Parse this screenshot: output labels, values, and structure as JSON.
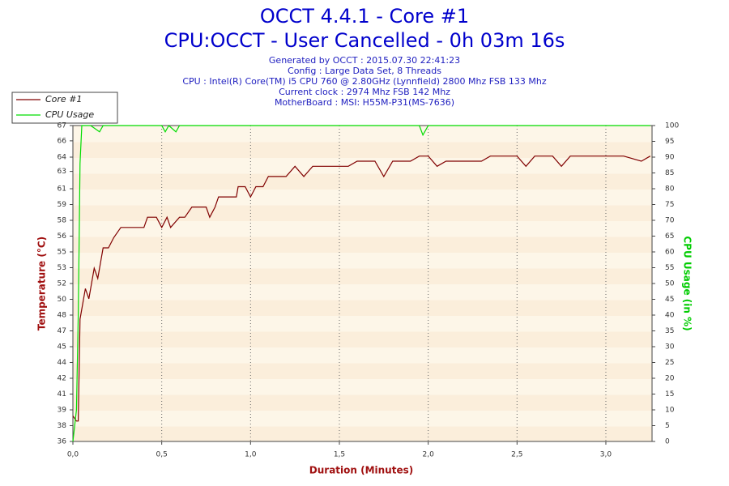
{
  "chart_data": {
    "type": "line",
    "title": "OCCT 4.4.1 - Core #1",
    "subtitle": "CPU:OCCT - User Cancelled - 0h 03m 16s",
    "info": [
      "Generated by OCCT : 2015.07.30 22:41:23",
      "Config : Large Data Set, 8 Threads",
      "CPU : Intel(R) Core(TM) i5 CPU 760 @ 2.80GHz (Lynnfield) 2800 Mhz FSB 133 Mhz",
      "Current clock : 2974 Mhz FSB 142 Mhz",
      "MotherBoard : MSI: H55M-P31(MS-7636)"
    ],
    "x_label": "Duration (Minutes)",
    "y_label": "Temperature (°C)",
    "y2_label": "CPU Usage (in %)",
    "xlim": [
      0,
      3.26
    ],
    "ylim": [
      36,
      67
    ],
    "y2lim": [
      0,
      100
    ],
    "xticks": [
      {
        "value": 0,
        "label": "0,0"
      },
      {
        "value": 0.5,
        "label": "0,5"
      },
      {
        "value": 1,
        "label": "1,0"
      },
      {
        "value": 1.5,
        "label": "1,5"
      },
      {
        "value": 2,
        "label": "2,0"
      },
      {
        "value": 2.5,
        "label": "2,5"
      },
      {
        "value": 3,
        "label": "3,0"
      }
    ],
    "yticks": [
      36,
      {
        "value": 37.55,
        "label": "38"
      },
      {
        "value": 39.1,
        "label": "39"
      },
      {
        "value": 40.65,
        "label": "41"
      },
      {
        "value": 42.2,
        "label": "42"
      },
      {
        "value": 43.75,
        "label": "44"
      },
      {
        "value": 45.3,
        "label": "45"
      },
      {
        "value": 46.85,
        "label": "47"
      },
      {
        "value": 48.4,
        "label": "48"
      },
      {
        "value": 49.95,
        "label": "50"
      },
      {
        "value": 51.5,
        "label": "52"
      },
      {
        "value": 53.05,
        "label": "53"
      },
      {
        "value": 54.6,
        "label": "55"
      },
      {
        "value": 56.15,
        "label": "56"
      },
      {
        "value": 57.7,
        "label": "58"
      },
      {
        "value": 59.25,
        "label": "59"
      },
      {
        "value": 60.8,
        "label": "61"
      },
      {
        "value": 62.5,
        "label": "63"
      },
      {
        "value": 63.9,
        "label": "64"
      },
      {
        "value": 65.5,
        "label": "66"
      },
      67
    ],
    "y2ticks": [
      0,
      5,
      10,
      15,
      20,
      25,
      30,
      35,
      40,
      45,
      50,
      55,
      60,
      65,
      70,
      75,
      80,
      85,
      90,
      95,
      100
    ],
    "grid": true,
    "legend": "top-left",
    "series": [
      {
        "name": "Core #1",
        "color": "#800000",
        "x": [
          0,
          0.02,
          0.03,
          0.04,
          0.05,
          0.07,
          0.09,
          0.12,
          0.14,
          0.17,
          0.2,
          0.23,
          0.27,
          0.3,
          0.4,
          0.42,
          0.47,
          0.5,
          0.53,
          0.55,
          0.6,
          0.63,
          0.67,
          0.75,
          0.77,
          0.8,
          0.82,
          0.92,
          0.93,
          0.97,
          1.0,
          1.03,
          1.07,
          1.1,
          1.15,
          1.2,
          1.25,
          1.3,
          1.35,
          1.4,
          1.45,
          1.5,
          1.55,
          1.6,
          1.7,
          1.75,
          1.8,
          1.9,
          1.95,
          2.0,
          2.05,
          2.1,
          2.3,
          2.35,
          2.5,
          2.55,
          2.6,
          2.7,
          2.75,
          2.8,
          3.0,
          3.1,
          3.2,
          3.25
        ],
        "values": [
          38.5,
          38,
          38,
          48,
          49,
          51,
          50,
          53,
          52,
          55,
          55,
          56,
          57,
          57,
          57,
          58,
          58,
          57,
          58,
          57,
          58,
          58,
          59,
          59,
          58,
          59,
          60,
          60,
          61,
          61,
          60,
          61,
          61,
          62,
          62,
          62,
          63,
          62,
          63,
          63,
          63,
          63,
          63,
          63.5,
          63.5,
          62,
          63.5,
          63.5,
          64,
          64,
          63,
          63.5,
          63.5,
          64,
          64,
          63,
          64,
          64,
          63,
          64,
          64,
          64,
          63.5,
          64
        ]
      },
      {
        "name": "CPU Usage",
        "color": "#00dd00",
        "axis": "y2",
        "x": [
          0,
          0.02,
          0.03,
          0.035,
          0.04,
          0.05,
          0.1,
          0.15,
          0.17,
          0.5,
          0.52,
          0.54,
          0.58,
          0.6,
          1.95,
          1.97,
          2.0,
          3.25
        ],
        "values": [
          0,
          10,
          40,
          63,
          88,
          100,
          100,
          98,
          100,
          100,
          98,
          100,
          98,
          100,
          100,
          97,
          100,
          100
        ]
      }
    ]
  }
}
